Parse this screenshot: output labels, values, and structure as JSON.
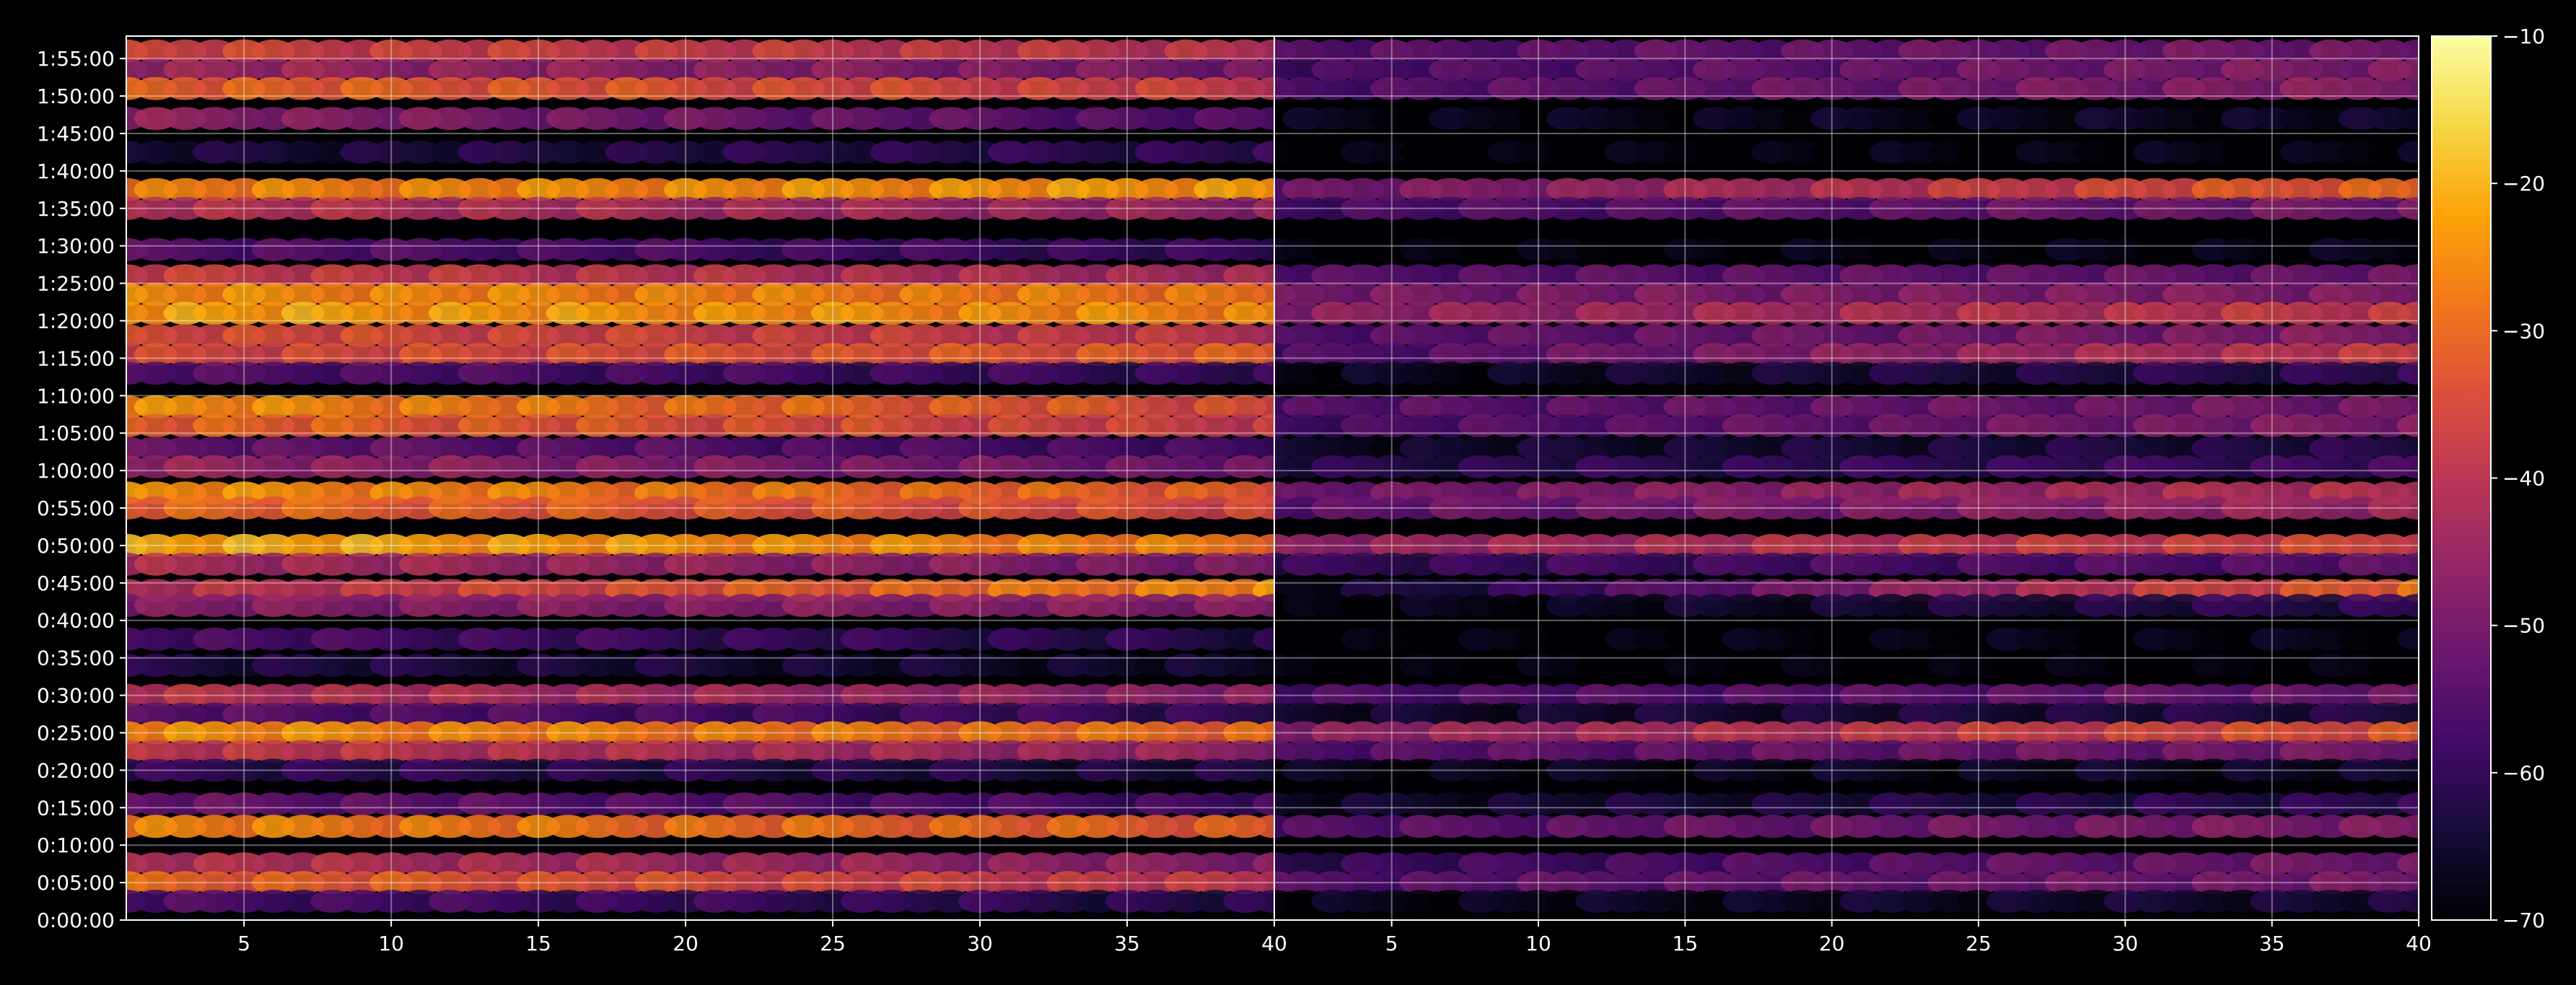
{
  "chart_data": {
    "type": "heatmap",
    "title": "",
    "xlabel": "",
    "ylabel": "",
    "grid": true,
    "colormap": "inferno",
    "background_color": "#000000",
    "text_color": "#ffffff",
    "panels": [
      {
        "name": "left",
        "xlim": [
          1,
          40
        ],
        "x_ticks": [
          5,
          10,
          15,
          20,
          25,
          30,
          35,
          40
        ],
        "x_tick_labels": [
          "5",
          "10",
          "15",
          "20",
          "25",
          "30",
          "35",
          "40"
        ]
      },
      {
        "name": "right",
        "xlim": [
          1,
          40
        ],
        "x_ticks": [
          5,
          10,
          15,
          20,
          25,
          30,
          35,
          40
        ],
        "x_tick_labels": [
          "5",
          "10",
          "15",
          "20",
          "25",
          "30",
          "35",
          "40"
        ]
      }
    ],
    "y_ticks_minutes": [
      0,
      5,
      10,
      15,
      20,
      25,
      30,
      35,
      40,
      45,
      50,
      55,
      60,
      65,
      70,
      75,
      80,
      85,
      90,
      95,
      100,
      105,
      110,
      115
    ],
    "y_tick_labels": [
      "0:00:00",
      "0:05:00",
      "0:10:00",
      "0:15:00",
      "0:20:00",
      "0:25:00",
      "0:30:00",
      "0:35:00",
      "0:40:00",
      "0:45:00",
      "0:50:00",
      "0:55:00",
      "1:00:00",
      "1:05:00",
      "1:10:00",
      "1:15:00",
      "1:20:00",
      "1:25:00",
      "1:30:00",
      "1:35:00",
      "1:40:00",
      "1:45:00",
      "1:50:00",
      "1:55:00"
    ],
    "ylim_minutes": [
      0,
      118
    ],
    "colorbar": {
      "range": [
        -70,
        -10
      ],
      "ticks": [
        -70,
        -60,
        -50,
        -40,
        -30,
        -20,
        -10
      ],
      "tick_labels": [
        "−70",
        "−60",
        "−50",
        "−40",
        "−30",
        "−20",
        "−10"
      ]
    },
    "bands": [
      {
        "time_minutes": 116,
        "left": [
          -36,
          -40
        ],
        "right": [
          -55,
          -50
        ]
      },
      {
        "time_minutes": 113.5,
        "left": [
          -44,
          -50
        ],
        "right": [
          -57,
          -48
        ]
      },
      {
        "time_minutes": 111,
        "left": [
          -30,
          -38
        ],
        "right": [
          -56,
          -47
        ]
      },
      {
        "time_minutes": 107,
        "left": [
          -46,
          -56
        ],
        "right": [
          -68,
          -66
        ]
      },
      {
        "time_minutes": 102.5,
        "left": [
          -64,
          -60
        ],
        "right": [
          -70,
          -68
        ]
      },
      {
        "time_minutes": 97.5,
        "left": [
          -27,
          -23
        ],
        "right": [
          -52,
          -30
        ]
      },
      {
        "time_minutes": 95,
        "left": [
          -40,
          -46
        ],
        "right": [
          -57,
          -50
        ]
      },
      {
        "time_minutes": 89.5,
        "left": [
          -54,
          -60
        ],
        "right": [
          -70,
          -68
        ]
      },
      {
        "time_minutes": 86,
        "left": [
          -37,
          -44
        ],
        "right": [
          -55,
          -52
        ]
      },
      {
        "time_minutes": 83.5,
        "left": [
          -25,
          -28
        ],
        "right": [
          -50,
          -48
        ]
      },
      {
        "time_minutes": 81,
        "left": [
          -22,
          -26
        ],
        "right": [
          -47,
          -38
        ]
      },
      {
        "time_minutes": 78,
        "left": [
          -34,
          -40
        ],
        "right": [
          -55,
          -48
        ]
      },
      {
        "time_minutes": 75.5,
        "left": [
          -36,
          -32
        ],
        "right": [
          -57,
          -38
        ]
      },
      {
        "time_minutes": 73,
        "left": [
          -55,
          -60
        ],
        "right": [
          -68,
          -60
        ]
      },
      {
        "time_minutes": 68.5,
        "left": [
          -24,
          -35
        ],
        "right": [
          -55,
          -50
        ]
      },
      {
        "time_minutes": 66,
        "left": [
          -30,
          -38
        ],
        "right": [
          -57,
          -48
        ]
      },
      {
        "time_minutes": 63,
        "left": [
          -52,
          -58
        ],
        "right": [
          -66,
          -62
        ]
      },
      {
        "time_minutes": 60.5,
        "left": [
          -45,
          -52
        ],
        "right": [
          -62,
          -58
        ]
      },
      {
        "time_minutes": 57,
        "left": [
          -24,
          -32
        ],
        "right": [
          -52,
          -40
        ]
      },
      {
        "time_minutes": 55,
        "left": [
          -30,
          -36
        ],
        "right": [
          -54,
          -44
        ]
      },
      {
        "time_minutes": 50,
        "left": [
          -20,
          -28
        ],
        "right": [
          -46,
          -35
        ]
      },
      {
        "time_minutes": 47.5,
        "left": [
          -42,
          -50
        ],
        "right": [
          -60,
          -54
        ]
      },
      {
        "time_minutes": 44,
        "left": [
          -42,
          -25
        ],
        "right": [
          -68,
          -30
        ]
      },
      {
        "time_minutes": 42,
        "left": [
          -48,
          -48
        ],
        "right": [
          -70,
          -60
        ]
      },
      {
        "time_minutes": 37.5,
        "left": [
          -56,
          -62
        ],
        "right": [
          -70,
          -68
        ]
      },
      {
        "time_minutes": 34,
        "left": [
          -62,
          -66
        ],
        "right": [
          -70,
          -70
        ]
      },
      {
        "time_minutes": 30,
        "left": [
          -40,
          -48
        ],
        "right": [
          -57,
          -52
        ]
      },
      {
        "time_minutes": 27.5,
        "left": [
          -54,
          -60
        ],
        "right": [
          -66,
          -62
        ]
      },
      {
        "time_minutes": 25,
        "left": [
          -24,
          -30
        ],
        "right": [
          -47,
          -33
        ]
      },
      {
        "time_minutes": 22.5,
        "left": [
          -38,
          -46
        ],
        "right": [
          -55,
          -50
        ]
      },
      {
        "time_minutes": 20,
        "left": [
          -60,
          -64
        ],
        "right": [
          -68,
          -66
        ]
      },
      {
        "time_minutes": 15.5,
        "left": [
          -52,
          -58
        ],
        "right": [
          -66,
          -60
        ]
      },
      {
        "time_minutes": 12.5,
        "left": [
          -26,
          -32
        ],
        "right": [
          -55,
          -48
        ]
      },
      {
        "time_minutes": 7.5,
        "left": [
          -40,
          -48
        ],
        "right": [
          -60,
          -50
        ]
      },
      {
        "time_minutes": 5,
        "left": [
          -30,
          -40
        ],
        "right": [
          -55,
          -50
        ]
      },
      {
        "time_minutes": 2.5,
        "left": [
          -56,
          -62
        ],
        "right": [
          -68,
          -64
        ]
      }
    ]
  }
}
